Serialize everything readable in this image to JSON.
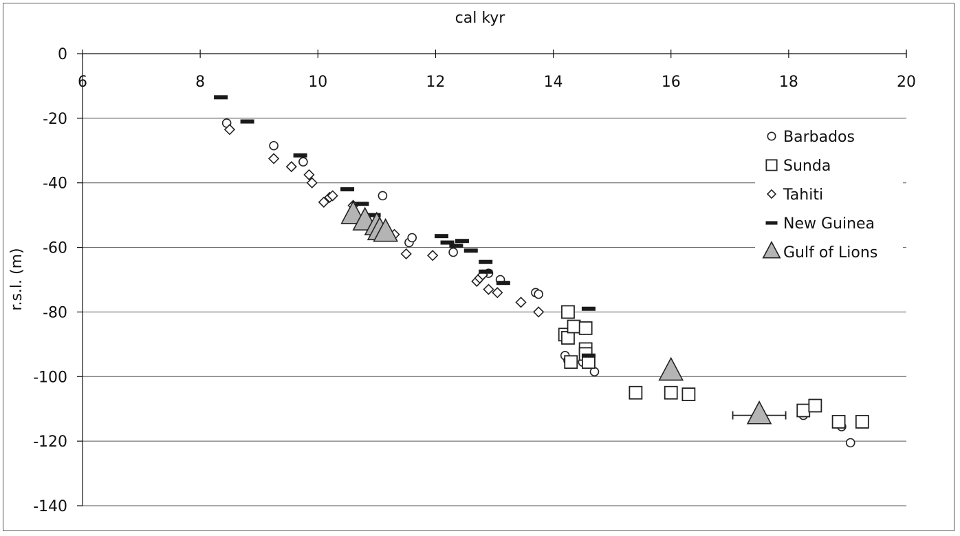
{
  "chart_data": {
    "type": "scatter",
    "title": "cal kyr",
    "xlabel": "cal kyr",
    "ylabel": "r.s.l. (m)",
    "xlim": [
      6,
      20
    ],
    "ylim": [
      -140,
      0
    ],
    "x_ticks": [
      "6",
      "8",
      "10",
      "12",
      "14",
      "16",
      "18",
      "20"
    ],
    "y_ticks": [
      "0",
      "-20",
      "-40",
      "-60",
      "-80",
      "-100",
      "-120",
      "-140"
    ],
    "grid": "horizontal",
    "legend_position": "right",
    "series": [
      {
        "name": "Barbados",
        "marker": "circle",
        "points": [
          [
            8.45,
            -21.5
          ],
          [
            9.25,
            -28.5
          ],
          [
            9.75,
            -33.5
          ],
          [
            11.1,
            -44
          ],
          [
            11.55,
            -58.5
          ],
          [
            11.6,
            -57
          ],
          [
            12.3,
            -61.5
          ],
          [
            12.9,
            -68
          ],
          [
            13.1,
            -70
          ],
          [
            13.7,
            -74
          ],
          [
            13.75,
            -74.5
          ],
          [
            14.2,
            -93.5
          ],
          [
            14.25,
            -95
          ],
          [
            14.5,
            -95.5
          ],
          [
            14.6,
            -96
          ],
          [
            14.7,
            -98.5
          ],
          [
            18.25,
            -112
          ],
          [
            18.9,
            -115.5
          ],
          [
            19.05,
            -120.5
          ]
        ]
      },
      {
        "name": "Sunda",
        "marker": "square",
        "points": [
          [
            14.2,
            -87
          ],
          [
            14.25,
            -88
          ],
          [
            14.25,
            -80
          ],
          [
            14.3,
            -95.5
          ],
          [
            14.35,
            -84.5
          ],
          [
            14.55,
            -85
          ],
          [
            14.55,
            -91.5
          ],
          [
            14.55,
            -93
          ],
          [
            14.6,
            -95.5
          ],
          [
            15.4,
            -105
          ],
          [
            16,
            -105
          ],
          [
            16.3,
            -105.5
          ],
          [
            18.25,
            -110.5
          ],
          [
            18.45,
            -109
          ],
          [
            18.85,
            -114
          ],
          [
            19.25,
            -114
          ]
        ]
      },
      {
        "name": "Tahiti",
        "marker": "diamond",
        "points": [
          [
            8.5,
            -23.5
          ],
          [
            9.25,
            -32.5
          ],
          [
            9.55,
            -35
          ],
          [
            9.85,
            -37.5
          ],
          [
            9.9,
            -40
          ],
          [
            10.1,
            -46
          ],
          [
            10.2,
            -44.5
          ],
          [
            10.25,
            -44
          ],
          [
            10.6,
            -47
          ],
          [
            11.3,
            -56
          ],
          [
            11.5,
            -62
          ],
          [
            11.95,
            -62.5
          ],
          [
            12.7,
            -70.5
          ],
          [
            12.75,
            -69.5
          ],
          [
            12.8,
            -68.5
          ],
          [
            12.9,
            -73
          ],
          [
            13.05,
            -74
          ],
          [
            13.45,
            -77
          ],
          [
            13.75,
            -80
          ]
        ]
      },
      {
        "name": "New Guinea",
        "marker": "bar",
        "points": [
          [
            8.35,
            -13.5
          ],
          [
            8.8,
            -21
          ],
          [
            9.7,
            -31.5
          ],
          [
            10.5,
            -42
          ],
          [
            10.75,
            -46.5
          ],
          [
            10.95,
            -50
          ],
          [
            12.1,
            -56.5
          ],
          [
            12.2,
            -58.5
          ],
          [
            12.35,
            -59.5
          ],
          [
            12.45,
            -58
          ],
          [
            12.6,
            -61
          ],
          [
            12.85,
            -64.5
          ],
          [
            12.85,
            -67.5
          ],
          [
            13.15,
            -71
          ],
          [
            14.6,
            -79
          ],
          [
            14.6,
            -93.5
          ]
        ]
      },
      {
        "name": "Gulf of Lions",
        "marker": "triangle",
        "error_bar_x": {
          "x": 17.5,
          "y": -112,
          "min": 17.05,
          "max": 17.95
        },
        "points": [
          [
            10.6,
            -50
          ],
          [
            10.8,
            -52
          ],
          [
            11,
            -53.5
          ],
          [
            11.05,
            -55
          ],
          [
            11.15,
            -55.5
          ],
          [
            16,
            -98.5
          ],
          [
            17.5,
            -112
          ]
        ]
      }
    ]
  }
}
